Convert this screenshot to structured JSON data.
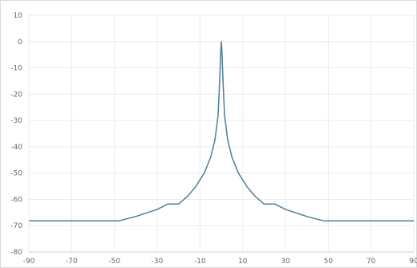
{
  "chart_data": {
    "type": "line",
    "title": "",
    "xlabel": "",
    "ylabel": "",
    "xlim": [
      -90,
      90
    ],
    "ylim": [
      -80,
      10
    ],
    "grid": true,
    "legend": "none",
    "line_color": "#4e7f96",
    "x_ticks": [
      -90,
      -70,
      -50,
      -30,
      -10,
      10,
      30,
      50,
      70,
      90
    ],
    "y_ticks": [
      10,
      0,
      -10,
      -20,
      -30,
      -40,
      -50,
      -60,
      -70,
      -80
    ],
    "series": [
      {
        "points": [
          [
            -90,
            -68.2
          ],
          [
            -48,
            -68.2
          ],
          [
            -40,
            -66.5
          ],
          [
            -30,
            -63.8
          ],
          [
            -25,
            -61.8
          ],
          [
            -20,
            -61.8
          ],
          [
            -16,
            -59.0
          ],
          [
            -12,
            -55.2
          ],
          [
            -8,
            -50.0
          ],
          [
            -5,
            -44.0
          ],
          [
            -3,
            -37.5
          ],
          [
            -1.5,
            -28.0
          ],
          [
            -0.8,
            -15.0
          ],
          [
            -0.3,
            -4.0
          ],
          [
            0,
            0
          ],
          [
            0.3,
            -4.0
          ],
          [
            0.8,
            -15.0
          ],
          [
            1.5,
            -28.0
          ],
          [
            3,
            -37.5
          ],
          [
            5,
            -44.0
          ],
          [
            8,
            -50.0
          ],
          [
            12,
            -55.2
          ],
          [
            16,
            -59.0
          ],
          [
            20,
            -61.8
          ],
          [
            25,
            -61.8
          ],
          [
            30,
            -63.8
          ],
          [
            40,
            -66.5
          ],
          [
            48,
            -68.2
          ],
          [
            90,
            -68.2
          ]
        ]
      }
    ]
  }
}
